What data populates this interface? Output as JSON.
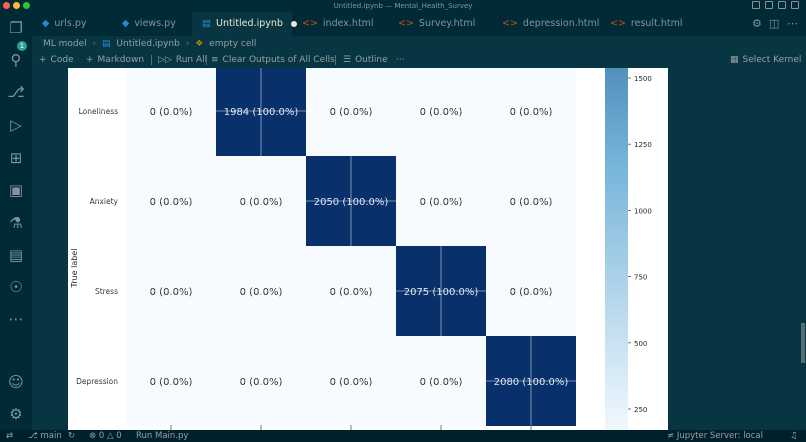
{
  "window": {
    "title": "Untitled.ipynb — Mental_Health_Survey"
  },
  "activity_bar": {
    "explorer_badge": "1"
  },
  "tabs": [
    {
      "label": "urls.py",
      "icon": "python-file-icon"
    },
    {
      "label": "views.py",
      "icon": "python-file-icon"
    },
    {
      "label": "Untitled.ipynb",
      "icon": "notebook-file-icon",
      "active": true,
      "dirty": true
    },
    {
      "label": "index.html",
      "icon": "html-file-icon"
    },
    {
      "label": "Survey.html",
      "icon": "html-file-icon"
    },
    {
      "label": "depression.html",
      "icon": "html-file-icon"
    },
    {
      "label": "result.html",
      "icon": "html-file-icon"
    }
  ],
  "breadcrumb": {
    "folder": "ML model",
    "file": "Untitled.ipynb",
    "cell": "empty cell"
  },
  "toolbar": {
    "code": "Code",
    "markdown": "Markdown",
    "run_all": "Run All",
    "clear_outputs": "Clear Outputs of All Cells",
    "outline": "Outline",
    "more": "···",
    "select_kernel": "Select Kernel"
  },
  "chart_data": {
    "type": "heatmap",
    "ylabel": "True label",
    "rows": [
      "Loneliness",
      "Anxiety",
      "Stress",
      "Depression"
    ],
    "cells": [
      [
        "0 (0.0%)",
        "1984 (100.0%)",
        "0 (0.0%)",
        "0 (0.0%)",
        "0 (0.0%)"
      ],
      [
        "0 (0.0%)",
        "0 (0.0%)",
        "2050 (100.0%)",
        "0 (0.0%)",
        "0 (0.0%)"
      ],
      [
        "0 (0.0%)",
        "0 (0.0%)",
        "0 (0.0%)",
        "2075 (100.0%)",
        "0 (0.0%)"
      ],
      [
        "0 (0.0%)",
        "0 (0.0%)",
        "0 (0.0%)",
        "0 (0.0%)",
        "2080 (100.0%)"
      ]
    ],
    "values": [
      [
        0,
        1984,
        0,
        0,
        0
      ],
      [
        0,
        0,
        2050,
        0,
        0
      ],
      [
        0,
        0,
        0,
        2075,
        0
      ],
      [
        0,
        0,
        0,
        0,
        2080
      ]
    ],
    "colorbar": {
      "ticks": [
        1500,
        1250,
        1000,
        750,
        500,
        250
      ],
      "labels": [
        "1500",
        "1250",
        "1000",
        "750",
        "500",
        "250"
      ],
      "colormap": "Blues"
    },
    "colors": {
      "max": "#08306b",
      "low": "#f7fbff"
    }
  },
  "status": {
    "branch": "main",
    "problems": "0",
    "warnings": "0",
    "run": "Run Main.py",
    "server": "Jupyter Server: local"
  }
}
